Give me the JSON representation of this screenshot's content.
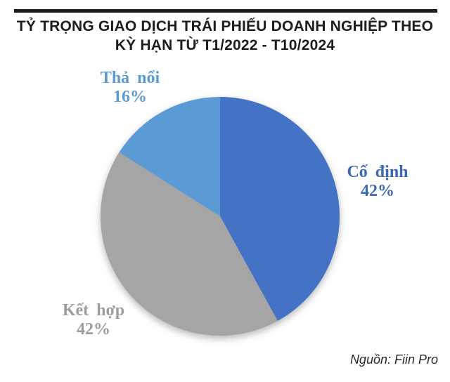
{
  "title": {
    "line1": "TỶ TRỌNG GIAO DỊCH TRÁI PHIẾU DOANH NGHIỆP THEO",
    "line2": "KỲ HẠN TỪ T1/2022 - T10/2024"
  },
  "source": "Nguồn: Fiin Pro",
  "chart_data": {
    "type": "pie",
    "title": "TỶ TRỌNG GIAO DỊCH TRÁI PHIẾU DOANH NGHIỆP THEO KỲ HẠN TỪ T1/2022 - T10/2024",
    "categories": [
      "Cố định",
      "Kết hợp",
      "Thả nổi"
    ],
    "values": [
      42,
      42,
      16
    ],
    "colors": [
      "#4472c4",
      "#a5a5a5",
      "#5b9bd5"
    ],
    "slice_ids": [
      "co-dinh",
      "ket-hop",
      "tha-noi"
    ],
    "start_angle_deg": 0,
    "direction": "clockwise",
    "legend_position": "none",
    "labels": [
      {
        "name": "Cố định",
        "pct": "42%",
        "color": "#3d69b3"
      },
      {
        "name": "Kết hợp",
        "pct": "42%",
        "color": "#9d9d9d"
      },
      {
        "name": "Thả nổi",
        "pct": "16%",
        "color": "#5b9bd5"
      }
    ]
  }
}
